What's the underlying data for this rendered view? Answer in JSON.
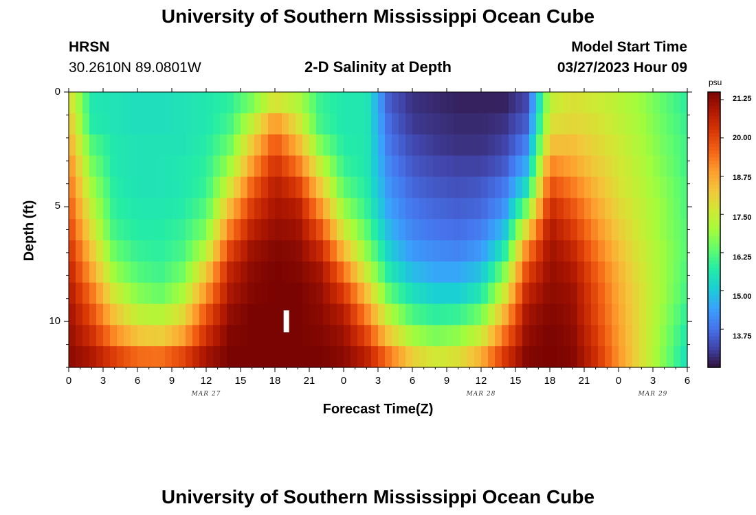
{
  "header": {
    "title": "University of Southern Mississippi Ocean Cube",
    "station": "HRSN",
    "coordinates": "30.2610N  89.0801W",
    "plot_title": "2-D Salinity at Depth",
    "model_label": "Model Start Time",
    "model_time": "03/27/2023 Hour 09"
  },
  "footer": {
    "title": "University of Southern Mississippi Ocean Cube"
  },
  "chart_data": {
    "type": "heatmap",
    "title": "2-D Salinity at Depth",
    "xlabel": "Forecast Time(Z)",
    "ylabel": "Depth (ft)",
    "x_ticks": [
      "0",
      "3",
      "6",
      "9",
      "12",
      "15",
      "18",
      "21",
      "0",
      "3",
      "6",
      "9",
      "12",
      "15",
      "18",
      "21",
      "0",
      "3",
      "6"
    ],
    "x_hours": [
      0,
      54
    ],
    "date_labels": [
      {
        "label": "MAR 27",
        "hour": 12
      },
      {
        "label": "MAR 28",
        "hour": 36
      },
      {
        "label": "MAR 29",
        "hour": 51
      }
    ],
    "y_ticks": [
      "0",
      "5",
      "10"
    ],
    "y_tick_values": [
      0,
      5,
      10
    ],
    "ylim": [
      0,
      12
    ],
    "colorbar": {
      "unit": "psu",
      "min": 12.5,
      "max": 21.5,
      "ticks": [
        "21.25",
        "20.00",
        "18.75",
        "17.50",
        "16.25",
        "15.00",
        "13.75"
      ],
      "tick_values": [
        21.25,
        20.0,
        18.75,
        17.5,
        16.25,
        15.0,
        13.75
      ],
      "colormap": [
        "#30123b",
        "#4145ab",
        "#4675ed",
        "#39a2fc",
        "#1bcfd4",
        "#24eca6",
        "#61fc6c",
        "#a4fc3b",
        "#d1e834",
        "#f3c63a",
        "#fe9b2d",
        "#f36315",
        "#d93806",
        "#b11901",
        "#7a0402"
      ]
    },
    "cursor_hour": 19,
    "salinity_rows_by_depth_ft": [
      {
        "depth": 0,
        "values": [
          18.0,
          15.6,
          15.5,
          15.4,
          15.4,
          15.5,
          15.6,
          15.8,
          16.6,
          17.8,
          17.2,
          15.9,
          15.6,
          15.6,
          13.4,
          12.9,
          12.8,
          12.7,
          12.7,
          12.7,
          13.2,
          17.4,
          17.8,
          17.6,
          17.3,
          16.9,
          16.3,
          15.8
        ]
      },
      {
        "depth": 1,
        "values": [
          18.4,
          15.7,
          15.5,
          15.4,
          15.4,
          15.5,
          15.6,
          16.0,
          17.4,
          19.0,
          17.8,
          16.0,
          15.6,
          15.6,
          13.6,
          13.0,
          12.9,
          12.8,
          12.8,
          12.9,
          13.5,
          17.8,
          18.0,
          17.8,
          17.4,
          17.0,
          16.4,
          15.9
        ]
      },
      {
        "depth": 2,
        "values": [
          18.8,
          16.2,
          15.6,
          15.5,
          15.5,
          15.5,
          15.7,
          16.4,
          18.2,
          19.8,
          18.6,
          16.6,
          15.7,
          15.6,
          13.8,
          13.2,
          13.0,
          12.9,
          12.9,
          13.1,
          14.0,
          18.4,
          18.4,
          18.0,
          17.6,
          17.1,
          16.5,
          16.0
        ]
      },
      {
        "depth": 3,
        "values": [
          19.2,
          16.6,
          15.6,
          15.5,
          15.5,
          15.6,
          15.8,
          16.9,
          18.9,
          20.4,
          19.4,
          17.4,
          15.9,
          15.6,
          14.0,
          13.4,
          13.2,
          13.1,
          13.1,
          13.4,
          14.6,
          19.2,
          18.8,
          18.2,
          17.7,
          17.2,
          16.6,
          16.0
        ]
      },
      {
        "depth": 4,
        "values": [
          19.5,
          17.0,
          15.7,
          15.5,
          15.5,
          15.6,
          15.9,
          17.6,
          19.6,
          20.8,
          20.2,
          18.2,
          16.3,
          15.7,
          14.2,
          13.6,
          13.4,
          13.3,
          13.4,
          13.8,
          15.4,
          19.9,
          19.3,
          18.5,
          17.8,
          17.3,
          16.7,
          16.1
        ]
      },
      {
        "depth": 5,
        "values": [
          19.8,
          17.4,
          15.8,
          15.6,
          15.6,
          15.7,
          16.2,
          18.4,
          20.2,
          21.0,
          20.8,
          19.0,
          16.9,
          15.9,
          14.4,
          13.8,
          13.6,
          13.5,
          13.6,
          14.2,
          16.6,
          20.5,
          19.8,
          18.8,
          18.0,
          17.4,
          16.8,
          16.1
        ]
      },
      {
        "depth": 6,
        "values": [
          20.1,
          17.8,
          16.0,
          15.7,
          15.7,
          15.9,
          16.6,
          19.2,
          20.7,
          21.2,
          21.1,
          19.8,
          17.6,
          16.3,
          14.7,
          14.0,
          13.8,
          13.7,
          13.9,
          14.8,
          18.0,
          20.9,
          20.2,
          19.1,
          18.2,
          17.5,
          16.8,
          16.2
        ]
      },
      {
        "depth": 7,
        "values": [
          20.4,
          18.3,
          16.4,
          15.9,
          15.8,
          16.1,
          17.3,
          20.0,
          21.1,
          21.4,
          21.3,
          20.5,
          18.5,
          16.8,
          15.1,
          14.3,
          14.1,
          14.0,
          14.3,
          15.6,
          19.2,
          21.1,
          20.6,
          19.4,
          18.4,
          17.6,
          16.9,
          16.2
        ]
      },
      {
        "depth": 8,
        "values": [
          20.7,
          18.8,
          16.9,
          16.2,
          16.0,
          16.5,
          18.2,
          20.6,
          21.3,
          21.5,
          21.4,
          21.0,
          19.4,
          17.5,
          15.6,
          14.8,
          14.5,
          14.5,
          14.9,
          16.6,
          20.0,
          21.2,
          20.9,
          19.7,
          18.6,
          17.7,
          16.9,
          16.1
        ]
      },
      {
        "depth": 9,
        "values": [
          20.9,
          19.4,
          17.6,
          16.7,
          16.4,
          17.1,
          19.0,
          20.9,
          21.4,
          21.5,
          21.5,
          21.2,
          20.2,
          18.4,
          16.3,
          15.4,
          15.1,
          15.1,
          15.6,
          17.5,
          20.6,
          21.3,
          21.1,
          19.9,
          18.7,
          17.8,
          16.9,
          16.0
        ]
      },
      {
        "depth": 10,
        "values": [
          21.1,
          19.9,
          18.3,
          17.4,
          17.2,
          17.9,
          19.8,
          21.2,
          21.5,
          21.5,
          21.5,
          21.3,
          20.8,
          19.2,
          17.2,
          16.1,
          15.8,
          15.9,
          16.5,
          18.5,
          21.0,
          21.4,
          21.2,
          20.0,
          18.8,
          17.8,
          16.8,
          15.8
        ]
      },
      {
        "depth": 11,
        "values": [
          21.2,
          20.4,
          19.1,
          18.3,
          18.1,
          18.8,
          20.4,
          21.4,
          21.5,
          21.5,
          21.5,
          21.4,
          21.1,
          20.0,
          18.2,
          17.0,
          16.6,
          16.8,
          17.5,
          19.4,
          21.2,
          21.5,
          21.3,
          20.2,
          18.9,
          17.8,
          16.7,
          15.6
        ]
      },
      {
        "depth": 12,
        "values": [
          21.3,
          20.9,
          20.1,
          19.5,
          19.4,
          20.0,
          21.0,
          21.5,
          21.5,
          21.5,
          21.5,
          21.5,
          21.3,
          20.7,
          19.3,
          18.1,
          17.6,
          17.8,
          18.6,
          20.2,
          21.4,
          21.5,
          21.4,
          20.4,
          19.0,
          17.8,
          16.6,
          15.4
        ]
      }
    ]
  }
}
